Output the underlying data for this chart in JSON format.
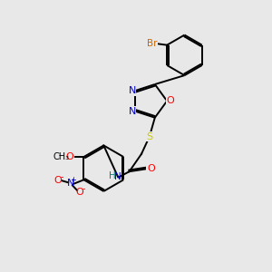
{
  "background_color": "#e8e8e8",
  "bond_color": "#000000",
  "atom_colors": {
    "Br": "#cc6600",
    "N": "#0000cc",
    "O": "#ff0000",
    "S": "#cccc00",
    "H": "#008080",
    "C": "#000000"
  },
  "lw": 1.4,
  "xlim": [
    0,
    10
  ],
  "ylim": [
    0,
    10
  ]
}
